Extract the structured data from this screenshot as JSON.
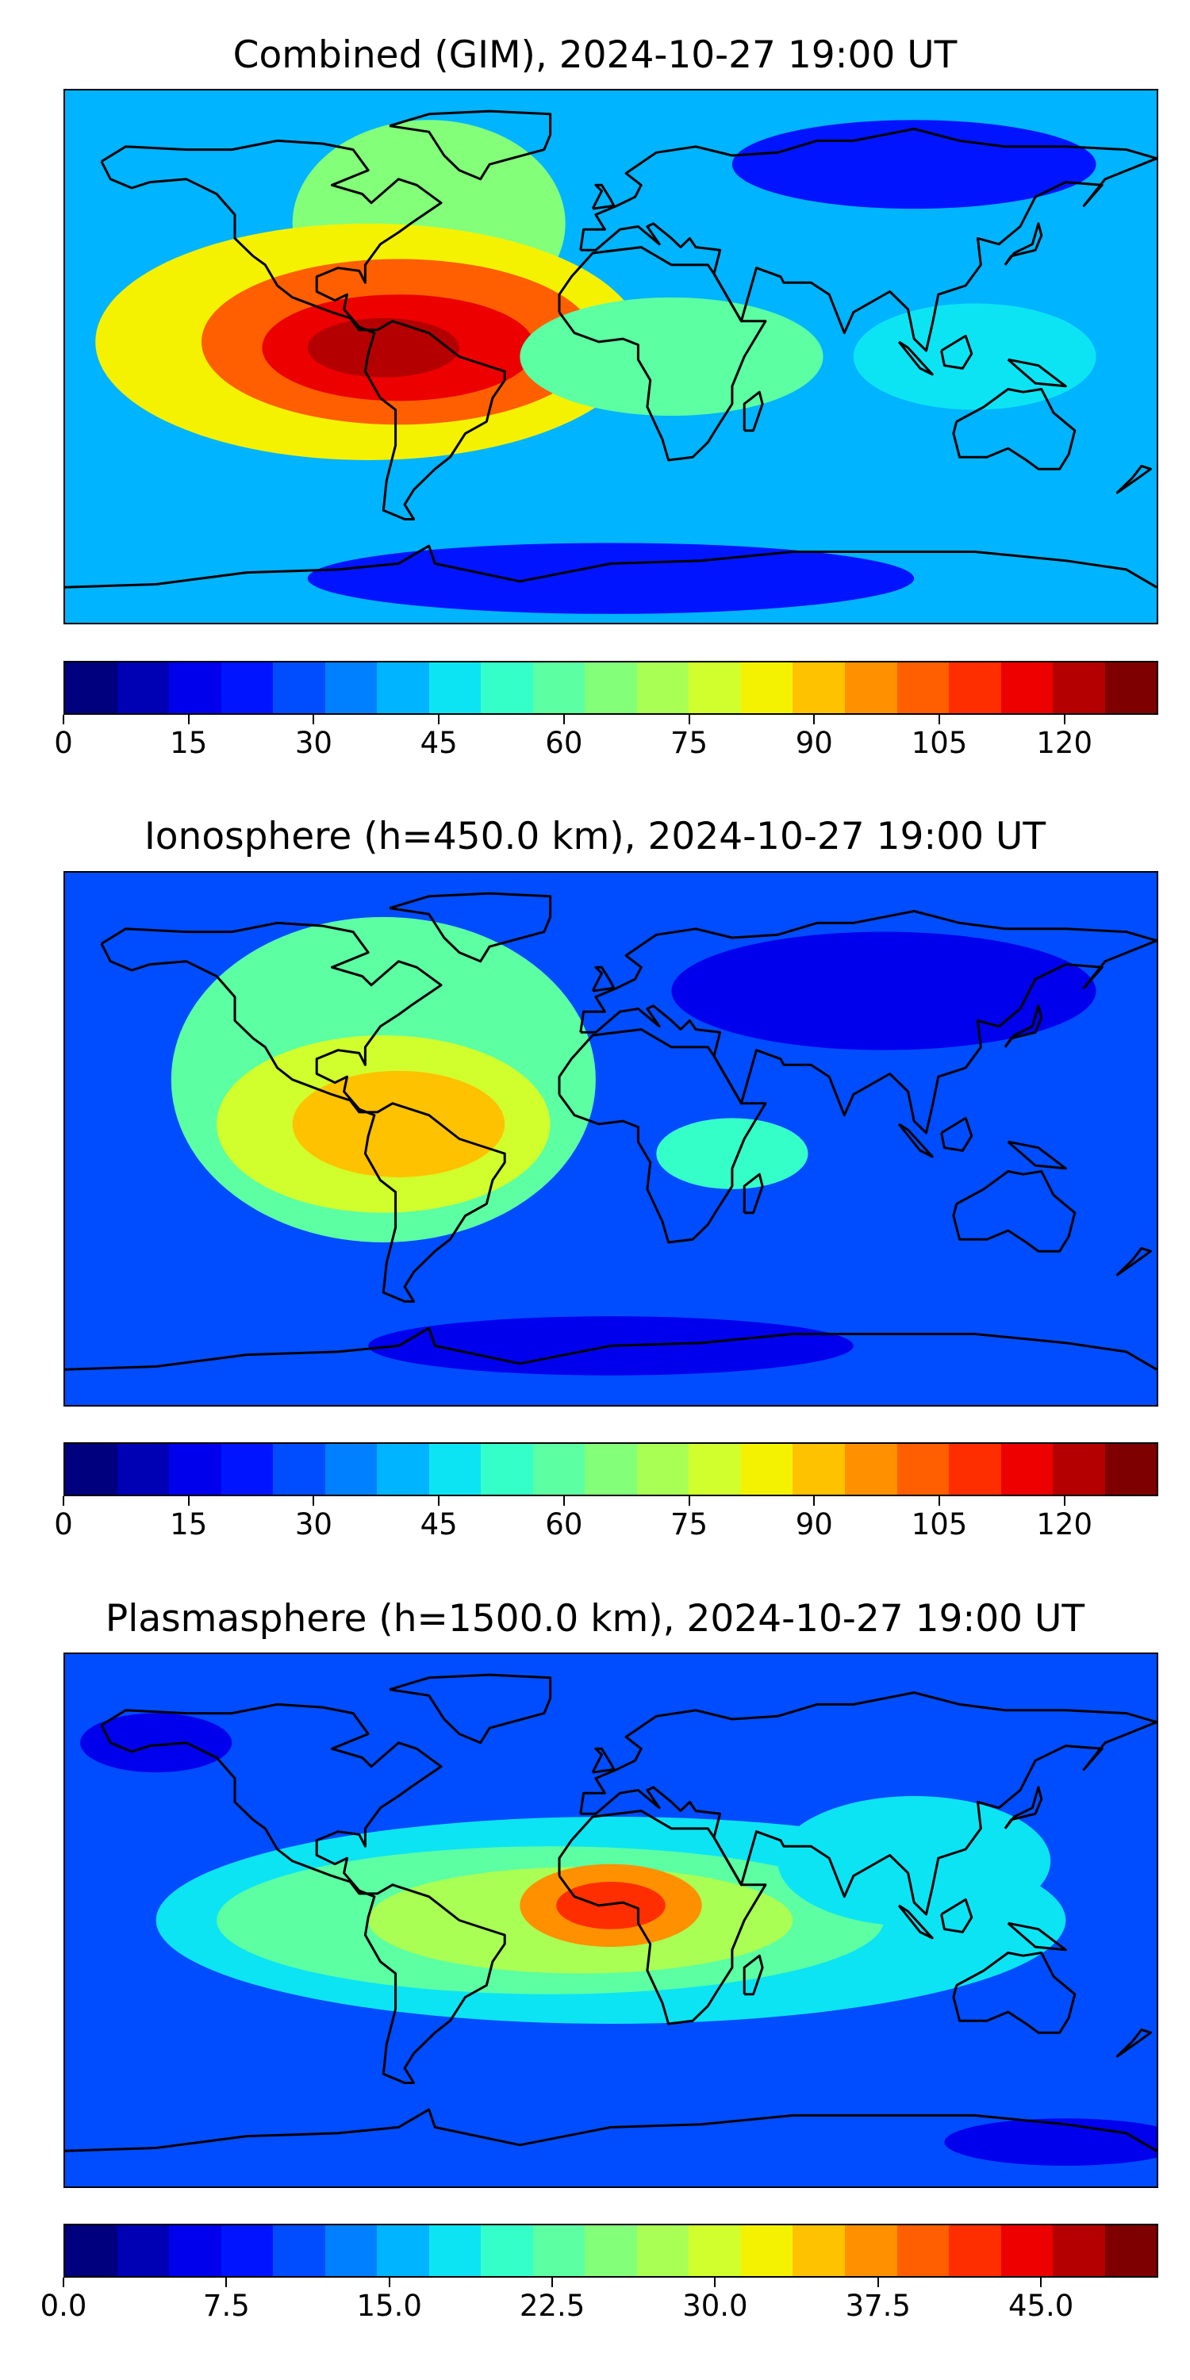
{
  "colormap": [
    "#00007f",
    "#0000b5",
    "#0000ec",
    "#0014ff",
    "#004cff",
    "#0080ff",
    "#00b4ff",
    "#0ce4f4",
    "#35ffc9",
    "#5cffa2",
    "#83ff7a",
    "#a9ff54",
    "#d0ff2d",
    "#f4f201",
    "#ffc200",
    "#ff9100",
    "#ff5f00",
    "#ff2e00",
    "#ec0000",
    "#b40000",
    "#7f0000"
  ],
  "panels": [
    {
      "id": "combined",
      "title": "Combined (GIM), 2024-10-27 19:00 UT",
      "colorbar": {
        "min": 0,
        "max": 131.25,
        "step": 6.25,
        "ticks": [
          0,
          15,
          30,
          45,
          60,
          75,
          90,
          105,
          120
        ],
        "tick_labels": [
          "0",
          "15",
          "30",
          "45",
          "60",
          "75",
          "90",
          "105",
          "120"
        ]
      },
      "map_data": {
        "background_level": 6,
        "blobs": [
          {
            "lon": -60,
            "lat": 45,
            "rx": 45,
            "ry": 35,
            "level": 10
          },
          {
            "lon": -80,
            "lat": 5,
            "rx": 90,
            "ry": 40,
            "level": 13
          },
          {
            "lon": -70,
            "lat": 5,
            "rx": 65,
            "ry": 28,
            "level": 16
          },
          {
            "lon": -70,
            "lat": 3,
            "rx": 45,
            "ry": 18,
            "level": 18
          },
          {
            "lon": -75,
            "lat": 3,
            "rx": 25,
            "ry": 10,
            "level": 19
          },
          {
            "lon": 20,
            "lat": 0,
            "rx": 50,
            "ry": 20,
            "level": 9
          },
          {
            "lon": 120,
            "lat": 0,
            "rx": 40,
            "ry": 18,
            "level": 7
          },
          {
            "lon": 100,
            "lat": 65,
            "rx": 60,
            "ry": 15,
            "level": 3
          },
          {
            "lon": 0,
            "lat": -75,
            "rx": 100,
            "ry": 12,
            "level": 3
          }
        ]
      }
    },
    {
      "id": "ionosphere",
      "title": "Ionosphere  (h=450.0 km), 2024-10-27 19:00 UT",
      "colorbar": {
        "min": 0,
        "max": 131.25,
        "step": 6.25,
        "ticks": [
          0,
          15,
          30,
          45,
          60,
          75,
          90,
          105,
          120
        ],
        "tick_labels": [
          "0",
          "15",
          "30",
          "45",
          "60",
          "75",
          "90",
          "105",
          "120"
        ]
      },
      "map_data": {
        "background_level": 4,
        "blobs": [
          {
            "lon": -75,
            "lat": 20,
            "rx": 70,
            "ry": 55,
            "level": 9
          },
          {
            "lon": -75,
            "lat": 5,
            "rx": 55,
            "ry": 30,
            "level": 12
          },
          {
            "lon": -70,
            "lat": 5,
            "rx": 35,
            "ry": 18,
            "level": 14
          },
          {
            "lon": 40,
            "lat": -5,
            "rx": 25,
            "ry": 12,
            "level": 8
          },
          {
            "lon": 90,
            "lat": 50,
            "rx": 70,
            "ry": 20,
            "level": 2
          },
          {
            "lon": 0,
            "lat": -70,
            "rx": 80,
            "ry": 10,
            "level": 2
          }
        ]
      }
    },
    {
      "id": "plasmasphere",
      "title": "Plasmasphere (h=1500.0 km), 2024-10-27 19:00 UT",
      "colorbar": {
        "min": 0,
        "max": 50.4,
        "step": 2.4,
        "ticks": [
          0,
          7.5,
          15,
          22.5,
          30,
          37.5,
          45
        ],
        "tick_labels": [
          "0.0",
          "7.5",
          "15.0",
          "22.5",
          "30.0",
          "37.5",
          "45.0"
        ]
      },
      "map_data": {
        "background_level": 4,
        "blobs": [
          {
            "lon": 0,
            "lat": 0,
            "rx": 150,
            "ry": 35,
            "level": 7
          },
          {
            "lon": -20,
            "lat": 0,
            "rx": 110,
            "ry": 25,
            "level": 9
          },
          {
            "lon": -10,
            "lat": 0,
            "rx": 70,
            "ry": 18,
            "level": 11
          },
          {
            "lon": 100,
            "lat": 20,
            "rx": 45,
            "ry": 22,
            "level": 7
          },
          {
            "lon": 0,
            "lat": 5,
            "rx": 30,
            "ry": 14,
            "level": 15
          },
          {
            "lon": 0,
            "lat": 5,
            "rx": 18,
            "ry": 8,
            "level": 17
          },
          {
            "lon": -150,
            "lat": 60,
            "rx": 25,
            "ry": 10,
            "level": 2
          },
          {
            "lon": 150,
            "lat": -75,
            "rx": 40,
            "ry": 8,
            "level": 2
          }
        ]
      }
    }
  ]
}
